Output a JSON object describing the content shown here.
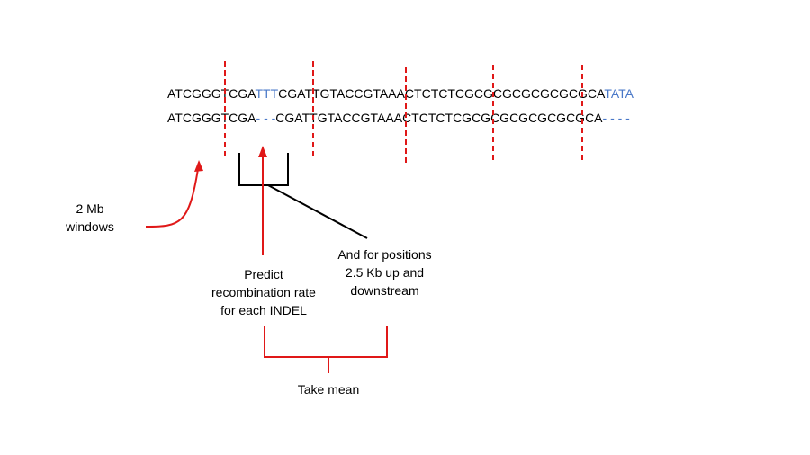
{
  "sequences": {
    "reference": {
      "before": "ATCGGGTCGA",
      "insert": "TTT",
      "middle": "CGATTGTACCGTAAACTCTCTCGCGCGCGCGCGCGCA",
      "tail": "TATA"
    },
    "variant": {
      "before": "ATCGGGTCGA",
      "gap": "- - -",
      "middle": "CGATTGTACCGTAAACTCTCTCGCGCGCGCGCGCGCA",
      "tail": "- - - -"
    }
  },
  "labels": {
    "windows": "2 Mb\nwindows",
    "predict": "Predict\nrecombination rate\nfor each INDEL",
    "flanking": "And for positions\n2.5 Kb up and\ndownstream",
    "mean": "Take mean"
  },
  "colors": {
    "red": "#e01818",
    "blue": "#4a78c8",
    "black": "#000000"
  }
}
